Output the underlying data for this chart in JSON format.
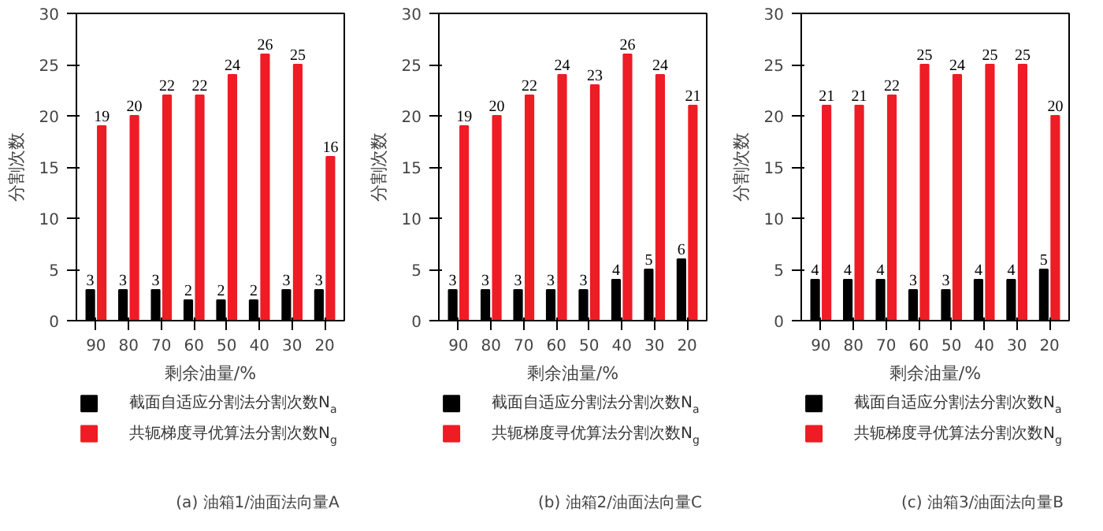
{
  "chart_data": [
    {
      "type": "bar",
      "title": "(a) 油箱1/油面法向量A",
      "xlabel": "剩余油量/%",
      "ylabel": "分割次数",
      "categories": [
        "90",
        "80",
        "70",
        "60",
        "50",
        "40",
        "30",
        "20"
      ],
      "ylim": [
        0,
        30
      ],
      "yticks": [
        0,
        5,
        10,
        15,
        20,
        25,
        30
      ],
      "grid": false,
      "legend": "bottom",
      "data_labels": true,
      "series": [
        {
          "name": "截面自适应分割法分割次数N$_{a}$",
          "color": "#000000",
          "values": [
            3,
            3,
            3,
            2,
            2,
            2,
            3,
            3
          ]
        },
        {
          "name": "共轭梯度寻优算法分割次数N$_{g}$",
          "color": "#ee1c25",
          "values": [
            19,
            20,
            22,
            22,
            24,
            26,
            25,
            16
          ]
        }
      ]
    },
    {
      "type": "bar",
      "title": "(b) 油箱2/油面法向量C",
      "xlabel": "剩余油量/%",
      "ylabel": "分割次数",
      "categories": [
        "90",
        "80",
        "70",
        "60",
        "50",
        "40",
        "30",
        "20"
      ],
      "ylim": [
        0,
        30
      ],
      "yticks": [
        0,
        5,
        10,
        15,
        20,
        25,
        30
      ],
      "grid": false,
      "legend": "bottom",
      "data_labels": true,
      "series": [
        {
          "name": "截面自适应分割法分割次数N$_{a}$",
          "color": "#000000",
          "values": [
            3,
            3,
            3,
            3,
            3,
            4,
            5,
            6
          ]
        },
        {
          "name": "共轭梯度寻优算法分割次数N$_{g}$",
          "color": "#ee1c25",
          "values": [
            19,
            20,
            22,
            24,
            23,
            26,
            24,
            21
          ]
        }
      ]
    },
    {
      "type": "bar",
      "title": "(c) 油箱3/油面法向量B",
      "xlabel": "剩余油量/%",
      "ylabel": "分割次数",
      "categories": [
        "90",
        "80",
        "70",
        "60",
        "50",
        "40",
        "30",
        "20"
      ],
      "ylim": [
        0,
        30
      ],
      "yticks": [
        0,
        5,
        10,
        15,
        20,
        25,
        30
      ],
      "grid": false,
      "legend": "bottom",
      "data_labels": true,
      "series": [
        {
          "name": "截面自适应分割法分割次数N$_{a}$",
          "color": "#000000",
          "values": [
            4,
            4,
            4,
            3,
            3,
            4,
            4,
            5
          ]
        },
        {
          "name": "共轭梯度寻优算法分割次数N$_{g}$",
          "color": "#ee1c25",
          "values": [
            21,
            21,
            22,
            25,
            24,
            25,
            25,
            20
          ]
        }
      ]
    }
  ]
}
